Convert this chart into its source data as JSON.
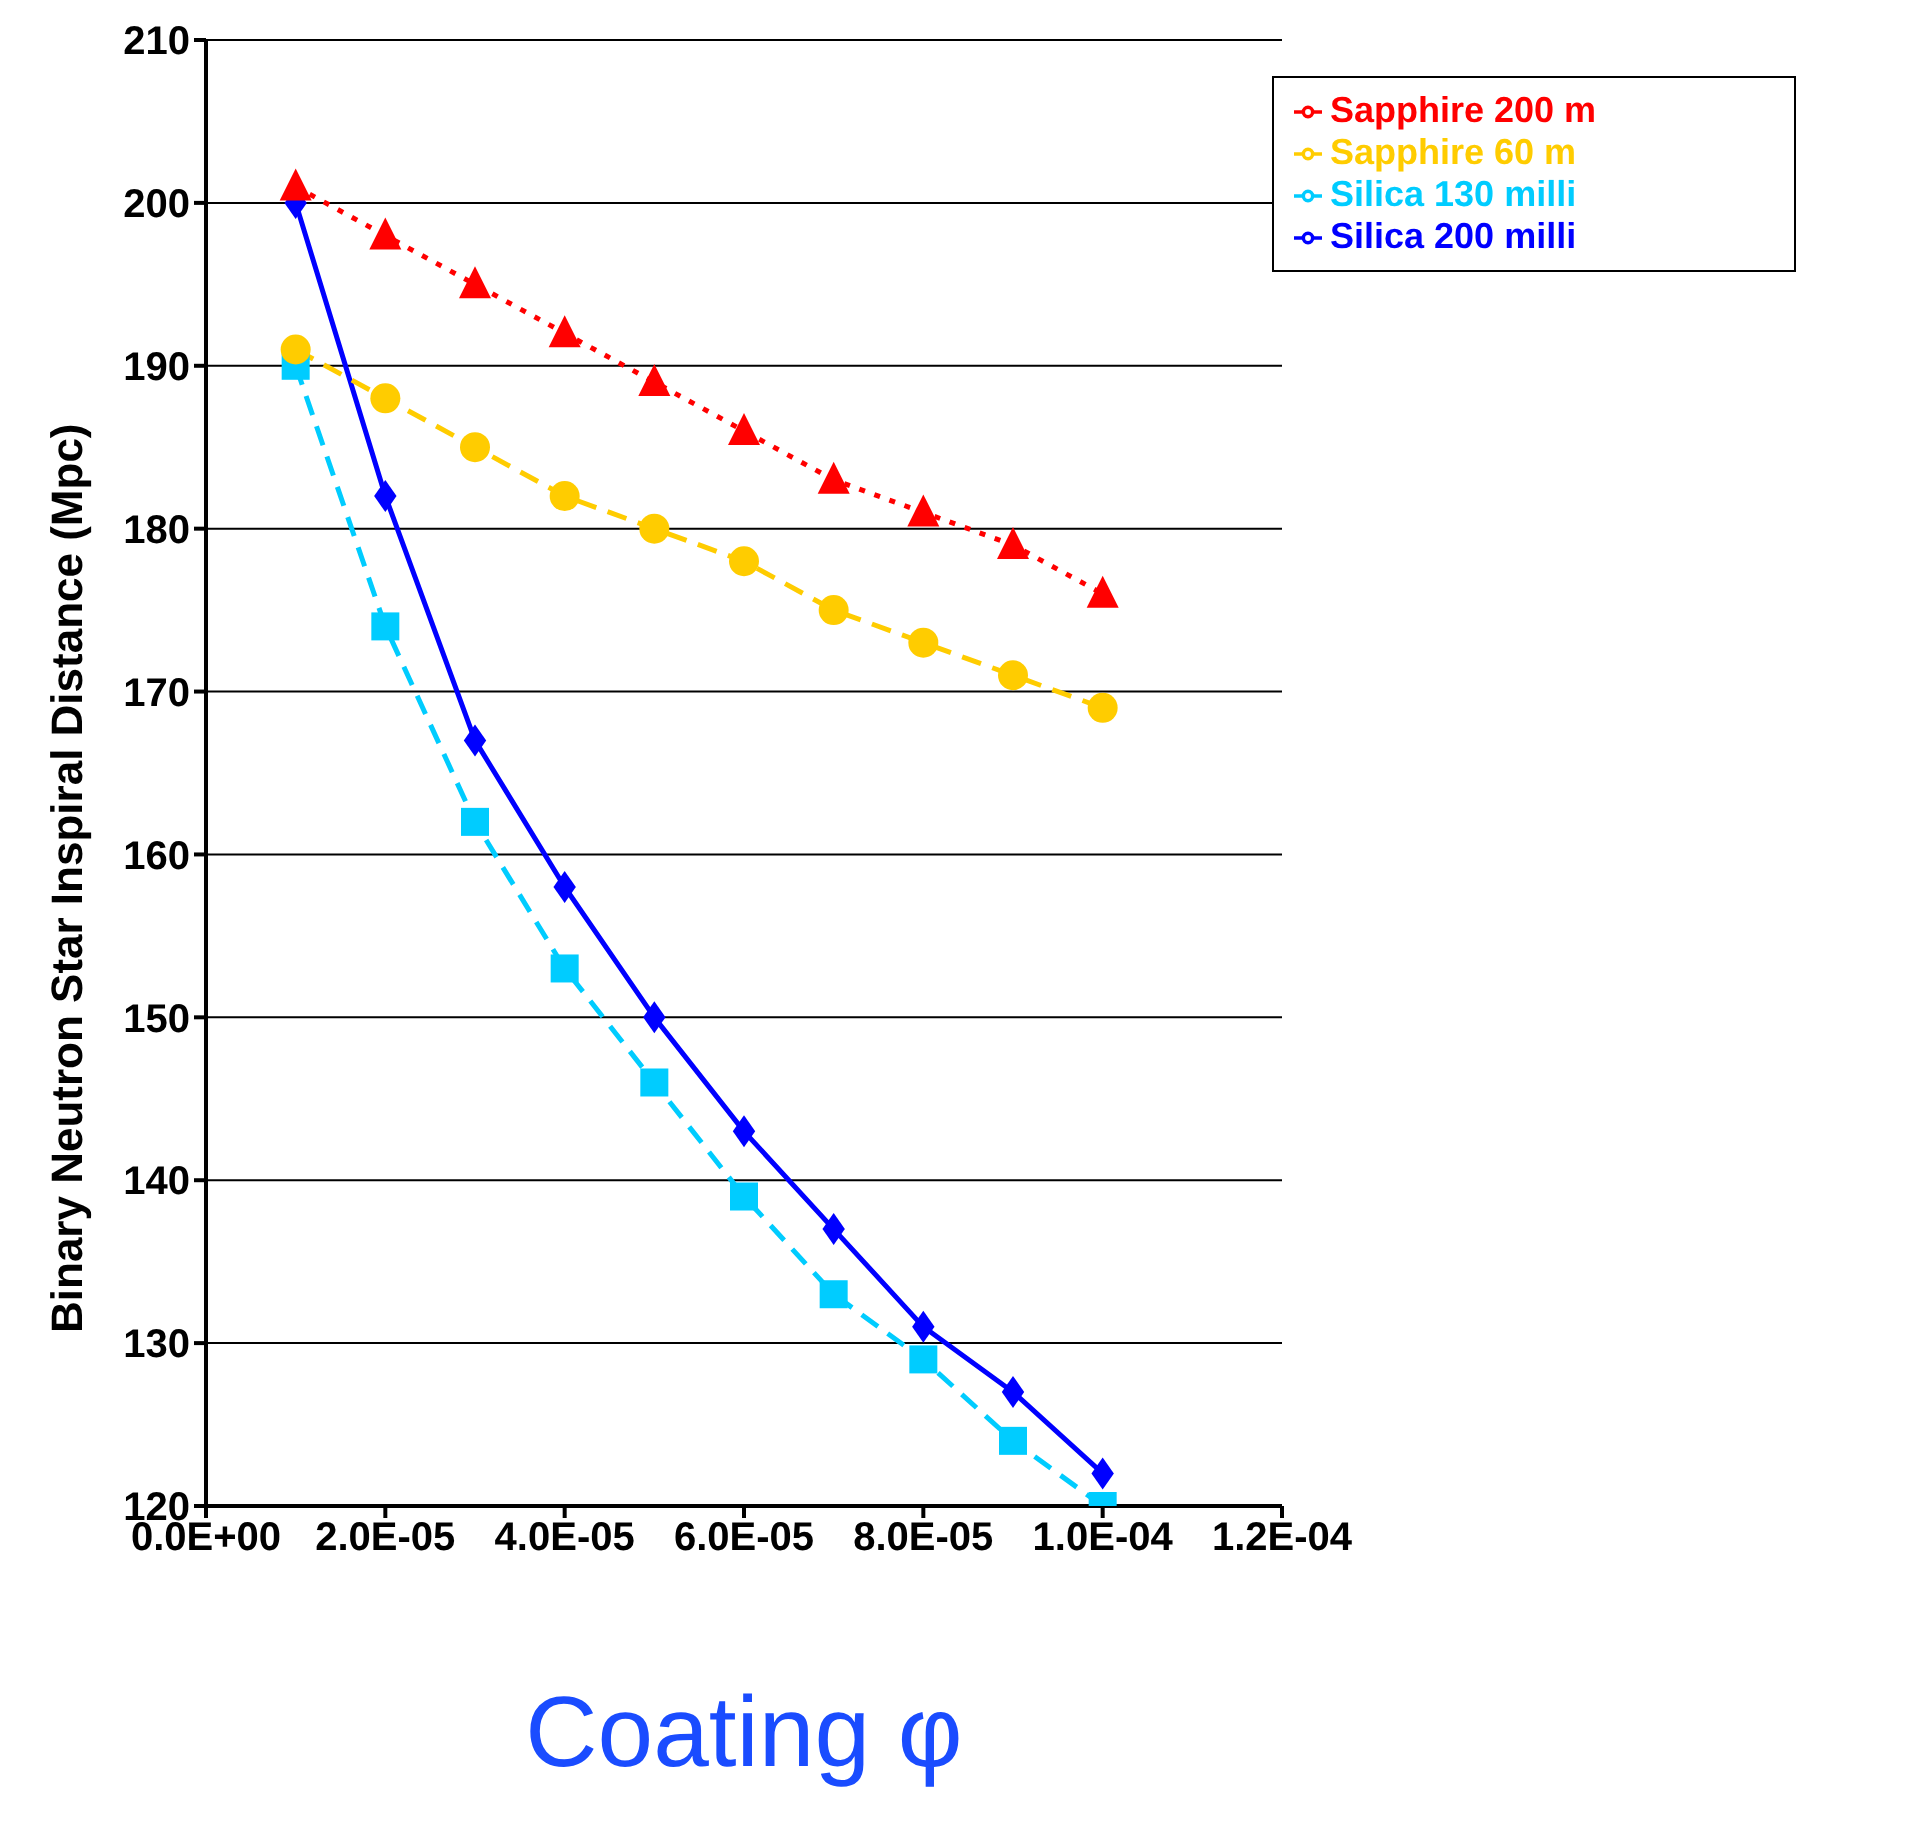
{
  "chart_data": {
    "type": "line",
    "xlabel": "Coating φ",
    "ylabel": "Binary Neutron Star Inspiral Distance (Mpc)",
    "x": [
      1e-05,
      2e-05,
      3e-05,
      4e-05,
      5e-05,
      6e-05,
      7e-05,
      8e-05,
      9e-05,
      0.0001
    ],
    "xlim": [
      0,
      0.00012
    ],
    "xticks": [
      {
        "value": 0,
        "label": "0.0E+00"
      },
      {
        "value": 2e-05,
        "label": "2.0E-05"
      },
      {
        "value": 4e-05,
        "label": "4.0E-05"
      },
      {
        "value": 6e-05,
        "label": "6.0E-05"
      },
      {
        "value": 8e-05,
        "label": "8.0E-05"
      },
      {
        "value": 0.0001,
        "label": "1.0E-04"
      },
      {
        "value": 0.00012,
        "label": "1.2E-04"
      }
    ],
    "ylim": [
      120,
      210
    ],
    "yticks": [
      120,
      130,
      140,
      150,
      160,
      170,
      180,
      190,
      200,
      210
    ],
    "grid": "y",
    "legend": "top right",
    "series": [
      {
        "name": "Silica 200 milli",
        "color": "#0000ff",
        "marker": "diamond",
        "line_style": "solid",
        "values": [
          200,
          182,
          167,
          158,
          150,
          143,
          137,
          131,
          127,
          122
        ]
      },
      {
        "name": "Silica 130 milli",
        "color": "#00ccff",
        "marker": "square",
        "line_style": "dashed",
        "values": [
          190,
          174,
          162,
          153,
          146,
          139,
          133,
          129,
          124,
          120
        ]
      },
      {
        "name": "Sapphire 200 m",
        "color": "#ff0000",
        "marker": "triangle",
        "line_style": "dotted",
        "values": [
          201,
          198,
          195,
          192,
          189,
          186,
          183,
          181,
          179,
          176
        ]
      },
      {
        "name": "Sapphire 60 m",
        "color": "#ffcc00",
        "marker": "circle",
        "line_style": "dashed",
        "values": [
          191,
          188,
          185,
          182,
          180,
          178,
          175,
          173,
          171,
          169
        ]
      }
    ]
  }
}
